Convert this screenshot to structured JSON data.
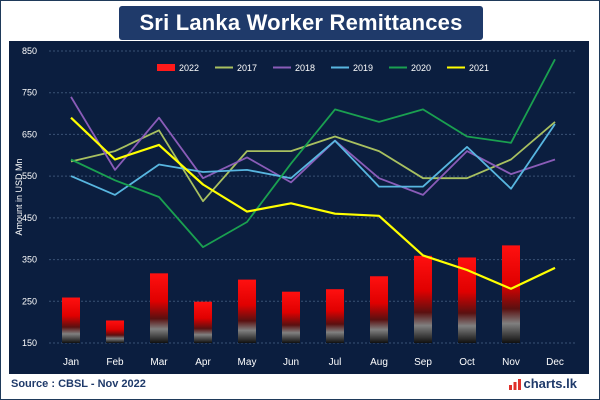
{
  "title": "Sri Lanka Worker Remittances",
  "source": "Source : CBSL - Nov 2022",
  "brand": "charts.lk",
  "colors": {
    "title_bg": "#1f3a6a",
    "panel_bg": "#0b1e3f",
    "text": "#ffffff"
  },
  "chart_data": {
    "type": "bar",
    "ylabel": "Amount in USD Mn",
    "ylim": [
      150,
      850
    ],
    "y_ticks": [
      150,
      250,
      350,
      450,
      550,
      650,
      750,
      850
    ],
    "y_tick_labels": [
      "150",
      "250",
      "350",
      "450",
      "550",
      "650",
      "750",
      "850"
    ],
    "categories": [
      "Jan",
      "Feb",
      "Mar",
      "Apr",
      "May",
      "Jun",
      "Jul",
      "Aug",
      "Sep",
      "Oct",
      "Nov",
      "Dec"
    ],
    "legend_position": "top",
    "series": [
      {
        "name": "2022",
        "kind": "bar",
        "color": "#ff1a1a",
        "values": [
          259,
          204,
          317,
          249,
          302,
          273,
          279,
          310,
          359,
          355,
          384,
          null
        ]
      },
      {
        "name": "2017",
        "kind": "line",
        "color": "#a8c060",
        "values": [
          585,
          610,
          660,
          490,
          610,
          610,
          645,
          610,
          545,
          545,
          590,
          680
        ]
      },
      {
        "name": "2018",
        "kind": "line",
        "color": "#8a5cb8",
        "values": [
          740,
          565,
          690,
          545,
          595,
          535,
          635,
          545,
          505,
          610,
          555,
          590
        ]
      },
      {
        "name": "2019",
        "kind": "line",
        "color": "#58b6e0",
        "values": [
          550,
          505,
          578,
          560,
          565,
          545,
          635,
          525,
          525,
          620,
          520,
          675
        ]
      },
      {
        "name": "2020",
        "kind": "line",
        "color": "#1aa050",
        "values": [
          590,
          540,
          500,
          380,
          440,
          580,
          710,
          680,
          710,
          645,
          630,
          830
        ]
      },
      {
        "name": "2021",
        "kind": "line",
        "color": "#ffff00",
        "values": [
          690,
          590,
          625,
          530,
          465,
          485,
          460,
          455,
          360,
          325,
          280,
          330
        ]
      }
    ]
  }
}
